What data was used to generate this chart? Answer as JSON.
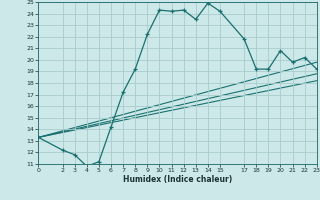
{
  "title": "",
  "xlabel": "Humidex (Indice chaleur)",
  "xlim": [
    0,
    23
  ],
  "ylim": [
    11,
    25
  ],
  "xticks": [
    0,
    2,
    3,
    4,
    5,
    6,
    7,
    8,
    9,
    10,
    11,
    12,
    13,
    14,
    15,
    17,
    18,
    19,
    20,
    21,
    22,
    23
  ],
  "yticks": [
    11,
    12,
    13,
    14,
    15,
    16,
    17,
    18,
    19,
    20,
    21,
    22,
    23,
    24,
    25
  ],
  "bg_color": "#cce8e8",
  "grid_color": "#aacccc",
  "line_color": "#1a7070",
  "line1_x": [
    0,
    2,
    3,
    4,
    5,
    6,
    7,
    8,
    9,
    10,
    11,
    12,
    13,
    14,
    15,
    17,
    18,
    19,
    20,
    21,
    22,
    23
  ],
  "line1_y": [
    13.3,
    12.2,
    11.8,
    10.8,
    11.2,
    14.2,
    17.2,
    19.2,
    22.2,
    24.3,
    24.2,
    24.3,
    23.5,
    24.9,
    24.2,
    21.8,
    19.2,
    19.2,
    20.8,
    19.8,
    20.2,
    19.2
  ],
  "line2_x": [
    0,
    23
  ],
  "line2_y": [
    13.3,
    19.8
  ],
  "line3_x": [
    0,
    23
  ],
  "line3_y": [
    13.3,
    18.8
  ],
  "line4_x": [
    0,
    23
  ],
  "line4_y": [
    13.3,
    18.2
  ]
}
